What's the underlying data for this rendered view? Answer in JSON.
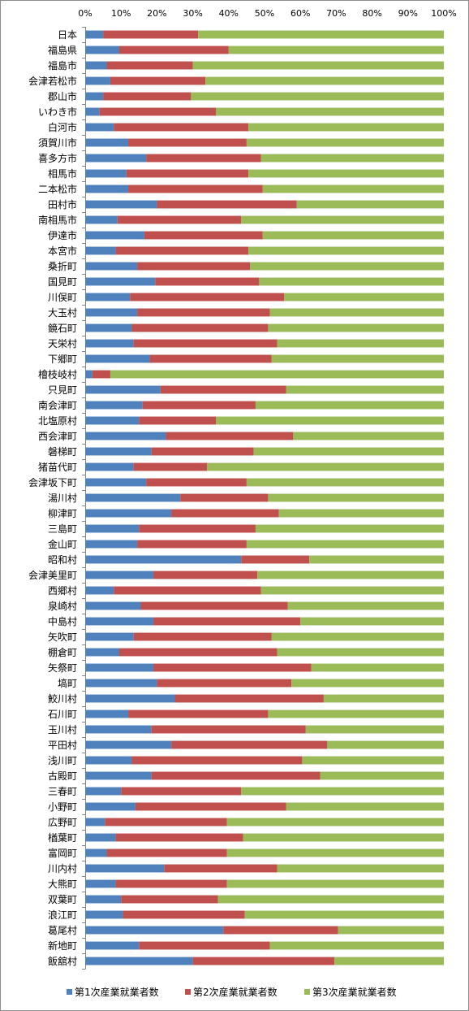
{
  "chart_data": {
    "type": "bar",
    "orientation": "horizontal",
    "stacking": "percent",
    "title": "",
    "xlabel": "",
    "ylabel": "",
    "xlim": [
      0,
      100
    ],
    "x_ticks": [
      "0%",
      "10%",
      "20%",
      "30%",
      "40%",
      "50%",
      "60%",
      "70%",
      "80%",
      "90%",
      "100%"
    ],
    "grid": false,
    "legend_position": "bottom",
    "categories": [
      "日本",
      "福島県",
      "福島市",
      "会津若松市",
      "郡山市",
      "いわき市",
      "白河市",
      "須賀川市",
      "喜多方市",
      "相馬市",
      "二本松市",
      "田村市",
      "南相馬市",
      "伊達市",
      "本宮市",
      "桑折町",
      "国見町",
      "川俣町",
      "大玉村",
      "鏡石町",
      "天栄村",
      "下郷町",
      "檜枝岐村",
      "只見町",
      "南会津町",
      "北塩原村",
      "西会津町",
      "磐梯町",
      "猪苗代町",
      "会津坂下町",
      "湯川村",
      "柳津町",
      "三島町",
      "金山町",
      "昭和村",
      "会津美里町",
      "西郷村",
      "泉崎村",
      "中島村",
      "矢吹町",
      "棚倉町",
      "矢祭町",
      "塙町",
      "鮫川村",
      "石川町",
      "玉川村",
      "平田村",
      "浅川町",
      "古殿町",
      "三春町",
      "小野町",
      "広野町",
      "楢葉町",
      "富岡町",
      "川内村",
      "大熊町",
      "双葉町",
      "浪江町",
      "葛尾村",
      "新地町",
      "飯舘村"
    ],
    "series": [
      {
        "name": "第1次産業就業者数",
        "color": "#4f81bd",
        "values": [
          5,
          9.5,
          6,
          7,
          5,
          4,
          8,
          12,
          17,
          11.5,
          12,
          20,
          9,
          16.5,
          8.5,
          14.5,
          19.5,
          12.5,
          14.5,
          13,
          13.5,
          18,
          2,
          21,
          16,
          15,
          22.5,
          18.5,
          13.5,
          17,
          26.5,
          24,
          15,
          14.5,
          43.5,
          19,
          8,
          15.5,
          19,
          13.5,
          9.5,
          19,
          20,
          25,
          12,
          18.5,
          24,
          13,
          18.5,
          10,
          14,
          5.5,
          8.5,
          6,
          22,
          8.5,
          10,
          10.5,
          38.5,
          15,
          30
        ]
      },
      {
        "name": "第2次産業就業者数",
        "color": "#c0504d",
        "values": [
          26.5,
          30.5,
          24,
          26.5,
          24.5,
          32.5,
          37.5,
          33,
          32,
          34,
          37.5,
          39,
          34.5,
          33,
          37,
          31.5,
          29,
          43,
          37,
          38,
          40,
          34,
          5,
          35,
          31.5,
          21.5,
          35.5,
          28.5,
          20.5,
          28,
          24.5,
          30,
          32.5,
          30.5,
          19,
          29,
          41,
          41,
          41,
          38.5,
          44,
          44,
          37.5,
          41.5,
          39,
          43,
          43.5,
          47.5,
          47,
          33.5,
          42,
          34,
          35.5,
          33.5,
          31.5,
          31,
          27,
          34,
          32,
          36.5,
          39.5
        ]
      },
      {
        "name": "第3次産業就業者数",
        "color": "#9bbb59",
        "values": [
          68.5,
          60,
          70,
          66.5,
          70.5,
          63.5,
          54.5,
          55,
          51,
          54.5,
          50.5,
          41,
          56.5,
          50.5,
          54.5,
          54,
          51.5,
          44.5,
          48.5,
          49,
          46.5,
          48,
          93,
          44,
          52.5,
          63.5,
          42,
          53,
          66,
          55,
          49,
          46,
          52.5,
          55,
          37.5,
          52,
          51,
          43.5,
          40,
          48,
          46.5,
          37,
          42.5,
          33.5,
          49,
          38.5,
          32.5,
          39.5,
          34.5,
          56.5,
          44,
          60.5,
          56,
          60.5,
          46.5,
          60.5,
          63,
          55.5,
          29.5,
          48.5,
          30.5
        ]
      }
    ]
  }
}
